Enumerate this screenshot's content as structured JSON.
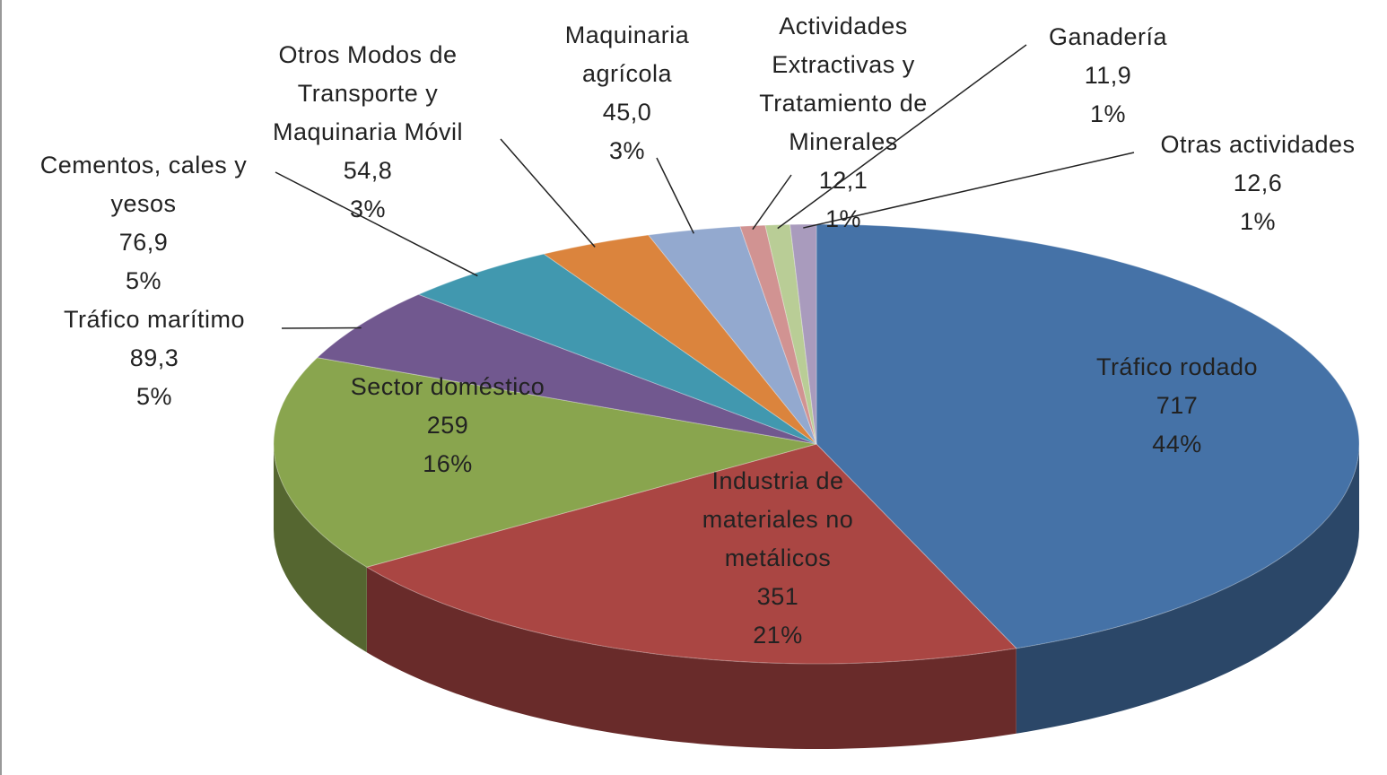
{
  "chart_data": {
    "type": "pie",
    "categories": [
      "Tráfico rodado",
      "Industria de materiales no metálicos",
      "Sector doméstico",
      "Tráfico marítimo",
      "Cementos, cales y yesos",
      "Otros Modos de Transporte y Maquinaria Móvil",
      "Maquinaria agrícola",
      "Actividades Extractivas y Tratamiento de Minerales",
      "Ganadería",
      "Otras actividades"
    ],
    "values": [
      717,
      351,
      259,
      89.3,
      76.9,
      54.8,
      45.0,
      12.1,
      11.9,
      12.6
    ],
    "value_labels": [
      "717",
      "351",
      "259",
      "89,3",
      "76,9",
      "54,8",
      "45,0",
      "12,1",
      "11,9",
      "12,6"
    ],
    "percentages": [
      44,
      21,
      16,
      5,
      5,
      3,
      3,
      1,
      1,
      1
    ],
    "percentage_labels": [
      "44%",
      "21%",
      "16%",
      "5%",
      "5%",
      "3%",
      "3%",
      "1%",
      "1%",
      "1%"
    ],
    "colors": [
      "#4572a7",
      "#aa4643",
      "#89a54e",
      "#71588f",
      "#4198af",
      "#db843d",
      "#93a9cf",
      "#d19392",
      "#b9cd96",
      "#a99bbd"
    ]
  }
}
